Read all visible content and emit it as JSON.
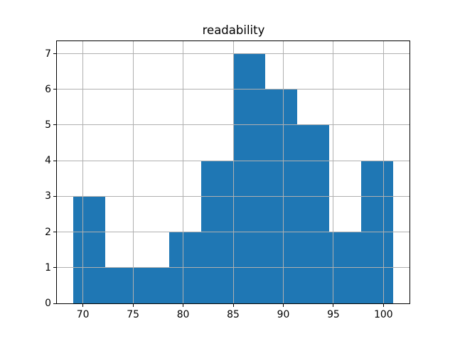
{
  "figure": {
    "title": "readability"
  },
  "colors": {
    "bar": "#1f77b4",
    "grid": "#b0b0b0",
    "spine": "#000000",
    "background": "#ffffff",
    "text": "#000000"
  },
  "chart_data": {
    "type": "bar",
    "subtype": "histogram",
    "title": "readability",
    "xlabel": "",
    "ylabel": "",
    "bin_edges": [
      69.0,
      72.2,
      75.4,
      78.6,
      81.8,
      85.0,
      88.2,
      91.4,
      94.6,
      97.8,
      101.0
    ],
    "counts": [
      3,
      1,
      1,
      2,
      4,
      7,
      6,
      5,
      2,
      4
    ],
    "xticks": [
      70,
      75,
      80,
      85,
      90,
      95,
      100
    ],
    "yticks": [
      0,
      1,
      2,
      3,
      4,
      5,
      6,
      7
    ],
    "xlim": [
      67.4,
      102.6
    ],
    "ylim": [
      0,
      7.35
    ],
    "grid": true,
    "grid_above_bars": true,
    "legend": false
  }
}
